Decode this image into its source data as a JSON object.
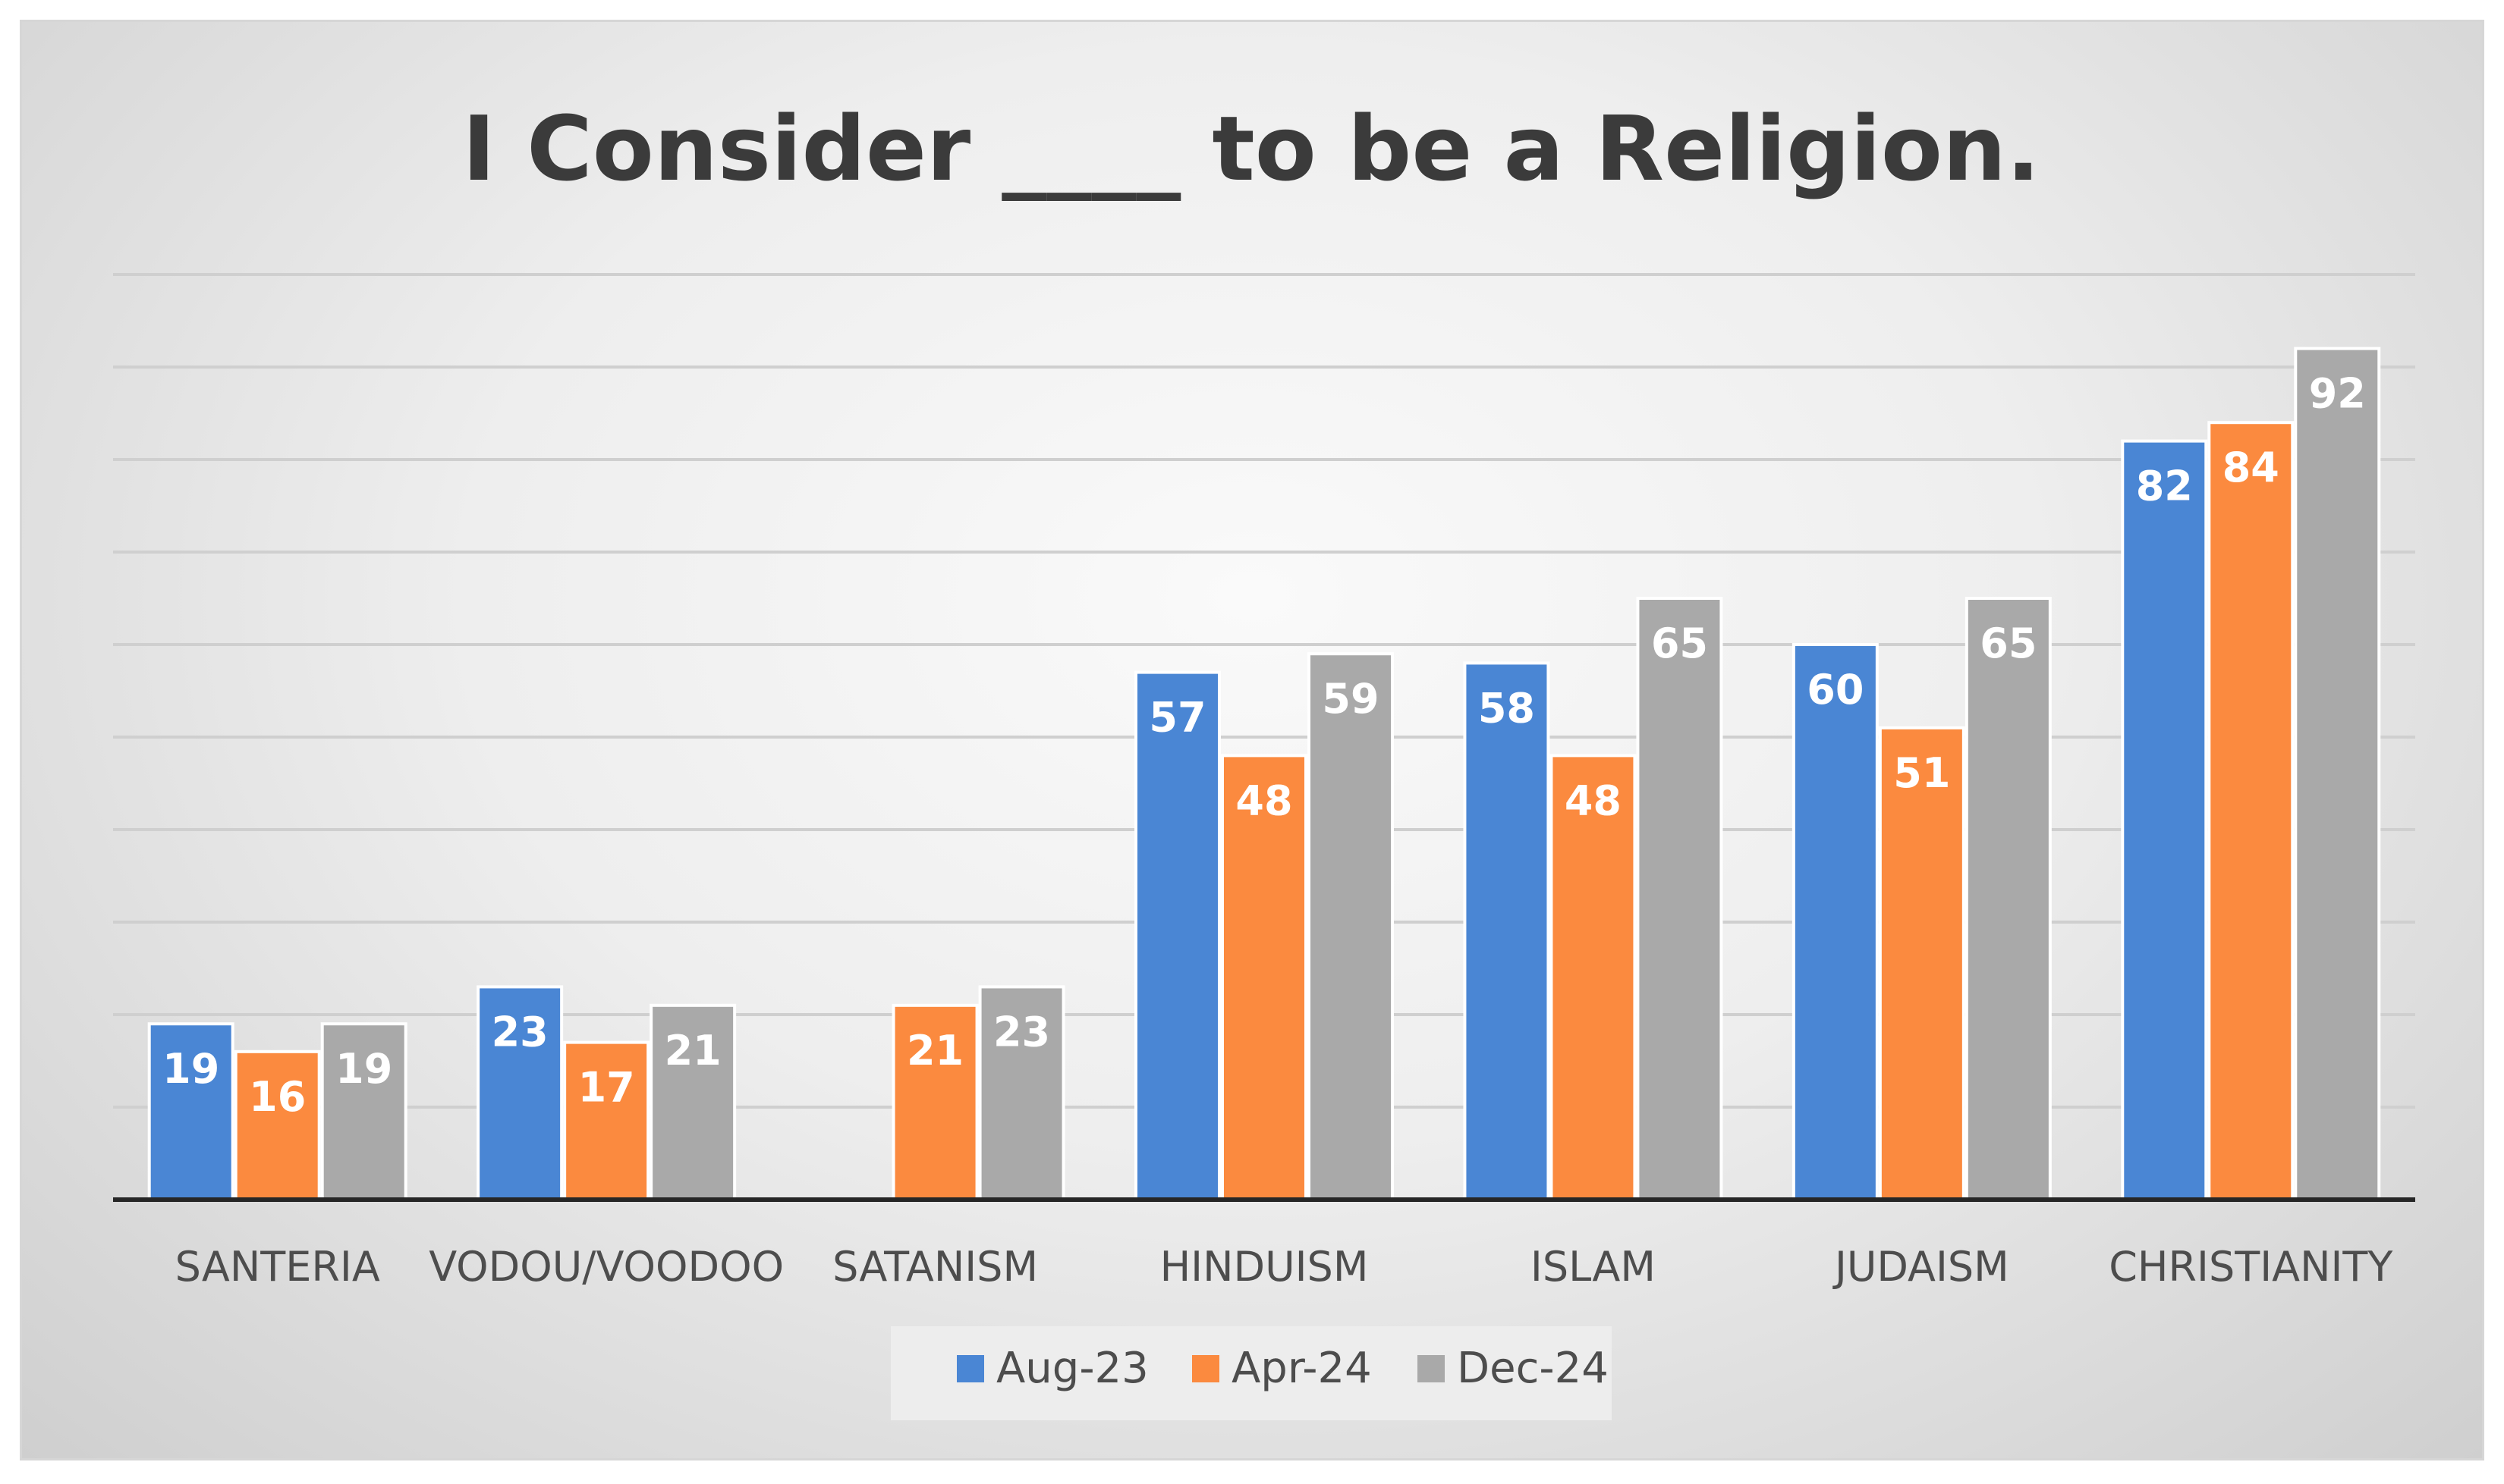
{
  "chart_data": {
    "type": "bar",
    "title": "I Consider ____ to be a Religion.",
    "xlabel": "",
    "ylabel": "",
    "ylim": [
      0,
      100
    ],
    "grid": true,
    "legend_position": "bottom",
    "categories": [
      "SANTERIA",
      "VODOU/VOODOO",
      "SATANISM",
      "HINDUISM",
      "ISLAM",
      "JUDAISM",
      "CHRISTIANITY"
    ],
    "series": [
      {
        "name": "Aug-23",
        "color": "#4a86d4",
        "values": [
          19,
          23,
          null,
          57,
          58,
          60,
          82
        ]
      },
      {
        "name": "Apr-24",
        "color": "#fb8a3f",
        "values": [
          16,
          17,
          21,
          48,
          48,
          51,
          84
        ]
      },
      {
        "name": "Dec-24",
        "color": "#a9a9a9",
        "values": [
          19,
          21,
          23,
          59,
          65,
          65,
          92
        ]
      }
    ]
  }
}
